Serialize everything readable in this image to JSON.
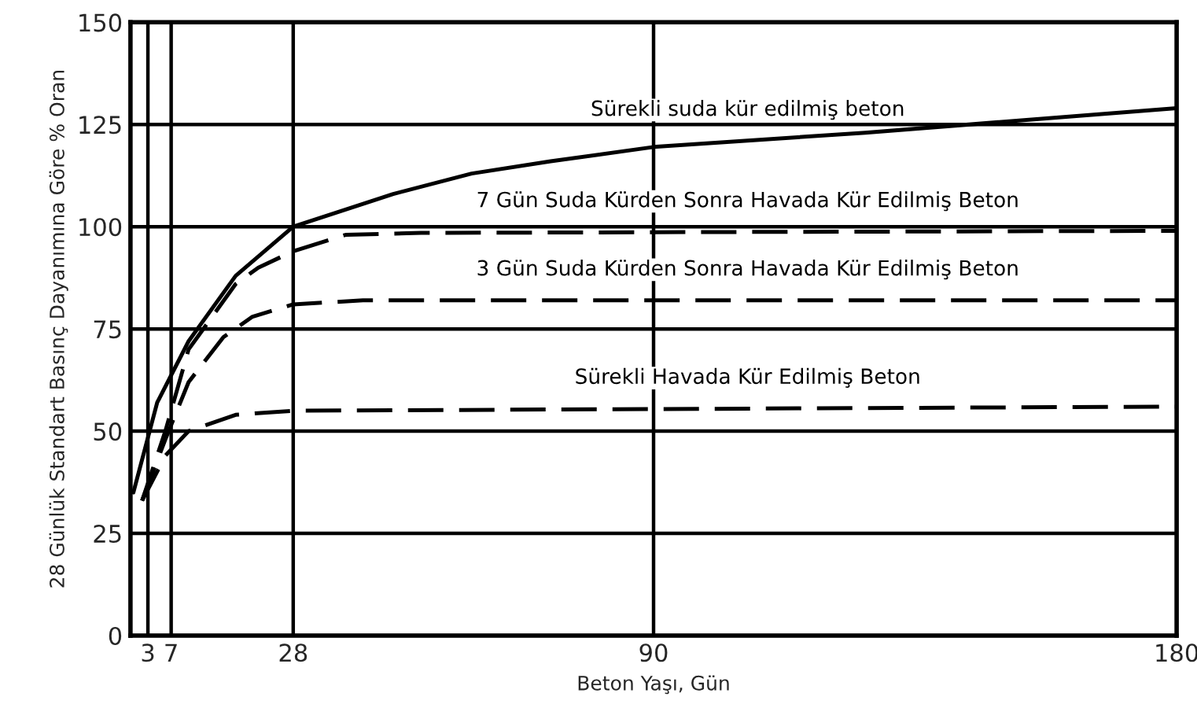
{
  "chart_data": {
    "type": "line",
    "xlabel": "Beton Yaşı, Gün",
    "ylabel": "28 Günlük Standart Basınç Dayanımına Göre % Oran",
    "x": [
      0.5,
      4.6,
      10,
      18.1,
      28,
      45.2,
      58.7,
      72.3,
      90,
      126.4,
      180
    ],
    "series": [
      {
        "name": "Sürekli suda kür edilmiş beton",
        "color": "#000000",
        "line_style": "solid",
        "values": [
          35,
          57,
          72,
          88,
          100,
          108,
          113,
          116,
          119.5,
          123,
          129
        ]
      },
      {
        "name": "7 Gün Suda Kürden Sonra Havada Kür Edilmiş Beton",
        "color": "#000000",
        "line_style": "dashed",
        "x": [
          2,
          6,
          10,
          18.1,
          22,
          28,
          37,
          50,
          180
        ],
        "values": [
          33,
          50,
          70,
          86,
          90,
          94,
          98,
          98.5,
          99
        ]
      },
      {
        "name": "3 Gün Suda Kürden Sonra Havada Kür Edilmiş Beton",
        "color": "#000000",
        "line_style": "dashed",
        "x": [
          2,
          6,
          10,
          16,
          21,
          28,
          40,
          180
        ],
        "values": [
          33,
          48,
          62,
          73,
          78,
          81,
          82,
          82
        ]
      },
      {
        "name": "Sürekli Havada Kür Edilmiş Beton",
        "color": "#000000",
        "line_style": "dashed",
        "x": [
          2,
          6,
          10,
          18.1,
          28,
          180
        ],
        "values": [
          33,
          44,
          50,
          54,
          55,
          56
        ]
      }
    ],
    "xlim": [
      0,
      180
    ],
    "xticks": [
      3,
      7,
      28,
      90,
      180
    ],
    "ylim": [
      0,
      150
    ],
    "yticks": [
      0,
      25,
      50,
      75,
      100,
      125,
      150
    ],
    "grid": true
  }
}
